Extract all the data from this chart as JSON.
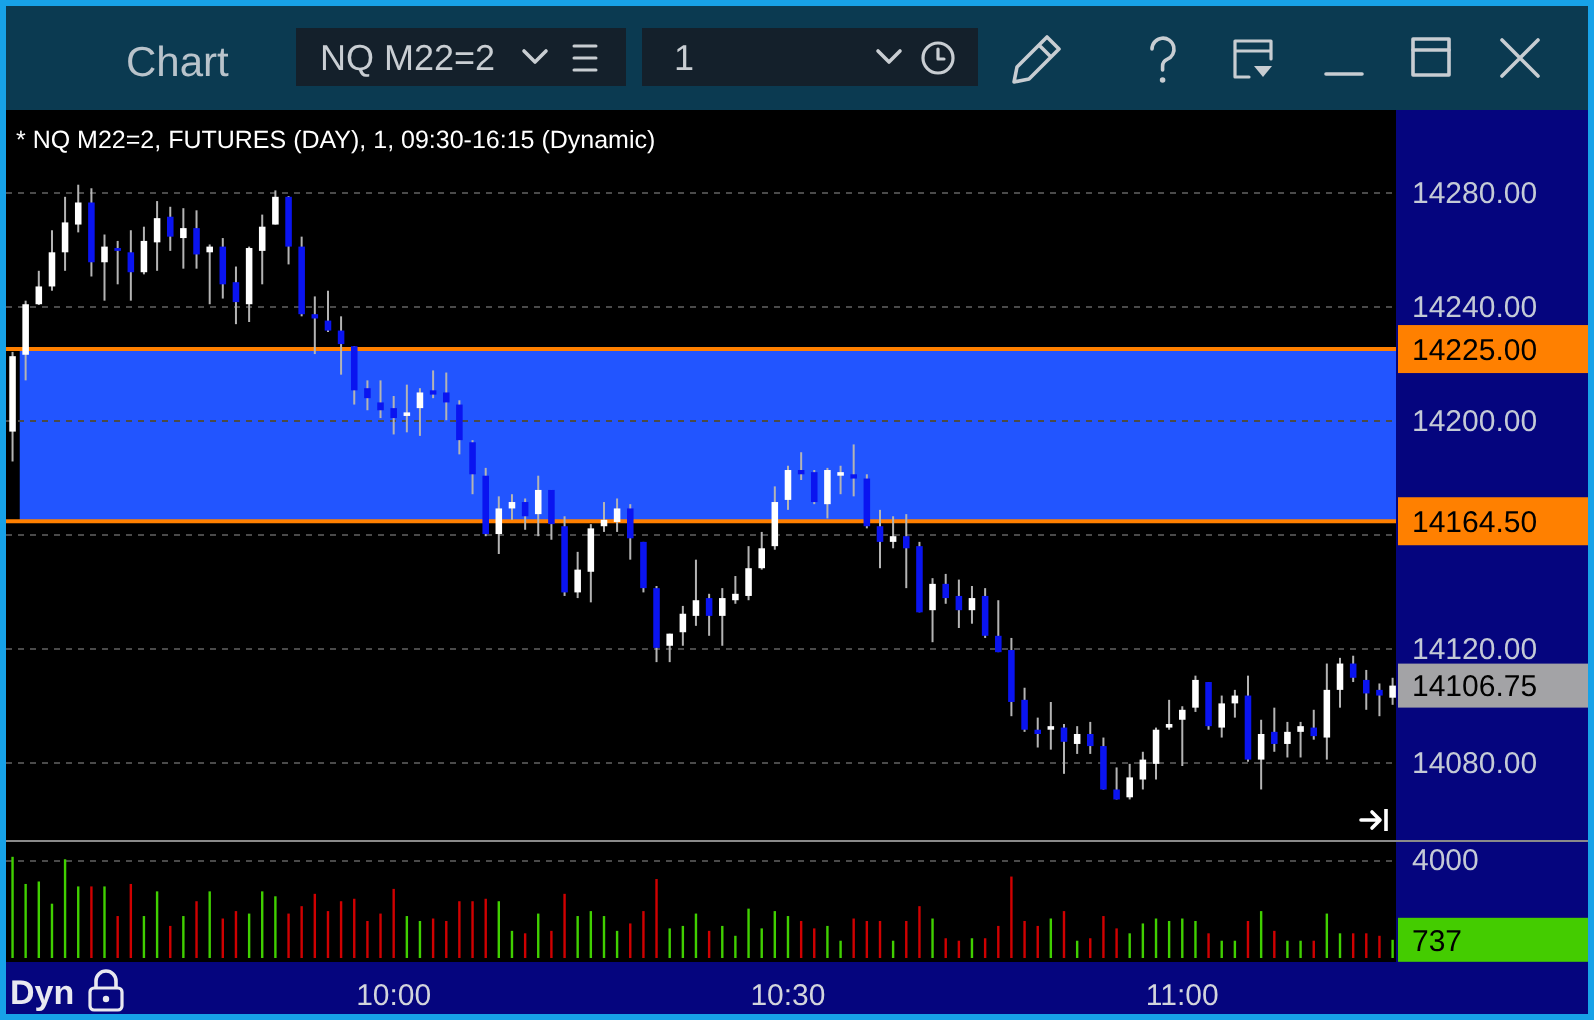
{
  "chart_data": [
    {
      "type": "candlestick",
      "title": "* NQ M22=2, FUTURES (DAY), 1, 09:30-16:15 (Dynamic)",
      "x": [
        9.5167,
        9.5333,
        9.55,
        9.5667,
        9.5833,
        9.6,
        9.6167,
        9.6333,
        9.65,
        9.6667,
        9.6833,
        9.7,
        9.7167,
        9.7333,
        9.75,
        9.7667,
        9.7833,
        9.8,
        9.8167,
        9.8333,
        9.85,
        9.8667,
        9.8833,
        9.9,
        9.9167,
        9.9333,
        9.95,
        9.9667,
        9.9833,
        10,
        10.0167,
        10.0333,
        10.05,
        10.0667,
        10.0833,
        10.1,
        10.1167,
        10.1333,
        10.15,
        10.1667,
        10.1833,
        10.2,
        10.2167,
        10.2333,
        10.25,
        10.2667,
        10.2833,
        10.3,
        10.3167,
        10.3333,
        10.35,
        10.3667,
        10.3833,
        10.4,
        10.4167,
        10.4333,
        10.45,
        10.4667,
        10.4833,
        10.5,
        10.5167,
        10.5333,
        10.55,
        10.5667,
        10.5833,
        10.6,
        10.6167,
        10.6333,
        10.65,
        10.6667,
        10.6833,
        10.7,
        10.7167,
        10.7333,
        10.75,
        10.7667,
        10.7833,
        10.8,
        10.8167,
        10.8333,
        10.85,
        10.8667,
        10.8833,
        10.9,
        10.9167,
        10.9333,
        10.95,
        10.9667,
        10.9833,
        11,
        11.0167,
        11.0333,
        11.05,
        11.0667,
        11.0833,
        11.1,
        11.1167,
        11.1333,
        11.15,
        11.1667,
        11.1833,
        11.2,
        11.2167,
        11.2333,
        11.25,
        11.2667
      ],
      "ohlc": [
        [
          14196,
          14224,
          14185.5,
          14222.5
        ],
        [
          14223,
          14242,
          14214,
          14240.75
        ],
        [
          14240.75,
          14252.5,
          14240.5,
          14247
        ],
        [
          14247,
          14266.75,
          14245.5,
          14259
        ],
        [
          14259,
          14278.5,
          14252.5,
          14269.5
        ],
        [
          14268.75,
          14282.75,
          14266,
          14276.5
        ],
        [
          14276.5,
          14281.5,
          14250.5,
          14255.5
        ],
        [
          14255.5,
          14265.25,
          14242,
          14261
        ],
        [
          14260.5,
          14263,
          14247.75,
          14259.5
        ],
        [
          14259,
          14266.75,
          14242,
          14252
        ],
        [
          14252,
          14268,
          14251.25,
          14263
        ],
        [
          14262.5,
          14277,
          14252.5,
          14271
        ],
        [
          14271.5,
          14275,
          14259.5,
          14264.5
        ],
        [
          14264,
          14274.5,
          14253.25,
          14267.5
        ],
        [
          14267.5,
          14273.75,
          14253.25,
          14258.25
        ],
        [
          14259,
          14261.75,
          14240.75,
          14261
        ],
        [
          14261,
          14264,
          14242.75,
          14247.75
        ],
        [
          14248.5,
          14254,
          14233.75,
          14241.5
        ],
        [
          14240.75,
          14261,
          14234.5,
          14260.5
        ],
        [
          14259.5,
          14272.25,
          14247.75,
          14268
        ],
        [
          14268.75,
          14280.75,
          14268.75,
          14278.5
        ],
        [
          14278.5,
          14278.75,
          14254.75,
          14261
        ],
        [
          14261,
          14264.5,
          14236.5,
          14237.25
        ],
        [
          14237.25,
          14243.5,
          14223.25,
          14235.75
        ],
        [
          14235,
          14245.5,
          14231,
          14231.5
        ],
        [
          14231.5,
          14236.5,
          14216,
          14226.75
        ],
        [
          14226,
          14226,
          14205.5,
          14210.5
        ],
        [
          14211.25,
          14214,
          14203.5,
          14207.75
        ],
        [
          14206.25,
          14214,
          14200.75,
          14203.5
        ],
        [
          14204.25,
          14208.5,
          14195,
          14200.75
        ],
        [
          14201.5,
          14212.5,
          14195.75,
          14202.75
        ],
        [
          14204.25,
          14211.25,
          14194.5,
          14209.75
        ],
        [
          14210.5,
          14217.5,
          14207.75,
          14209
        ],
        [
          14209.75,
          14216.75,
          14200,
          14206.25
        ],
        [
          14205.5,
          14207,
          14188,
          14193
        ],
        [
          14192.25,
          14193,
          14174,
          14181
        ],
        [
          14180.5,
          14183.25,
          14159.25,
          14160
        ],
        [
          14160,
          14173.25,
          14153,
          14169
        ],
        [
          14169,
          14174,
          14165,
          14171.25
        ],
        [
          14171.25,
          14172.5,
          14161.5,
          14166.25
        ],
        [
          14167,
          14180.5,
          14159.25,
          14175.5
        ],
        [
          14175.5,
          14175.5,
          14158,
          14163.5
        ],
        [
          14162.75,
          14166.25,
          14138.25,
          14139.5
        ],
        [
          14139.5,
          14153.75,
          14137.5,
          14147.5
        ],
        [
          14146.75,
          14163.5,
          14136,
          14162
        ],
        [
          14162.75,
          14171.25,
          14160.75,
          14165
        ],
        [
          14164.25,
          14172.5,
          14160.75,
          14169
        ],
        [
          14169,
          14170.5,
          14151,
          14158.5
        ],
        [
          14157.25,
          14157.25,
          14139.5,
          14141
        ],
        [
          14141,
          14141.75,
          14115,
          14120
        ],
        [
          14120.75,
          14125,
          14115,
          14125
        ],
        [
          14125.5,
          14134.75,
          14120.75,
          14132
        ],
        [
          14131.25,
          14151,
          14127.75,
          14136.75
        ],
        [
          14137.5,
          14139,
          14124.25,
          14131.25
        ],
        [
          14131.25,
          14141,
          14120.75,
          14137.5
        ],
        [
          14136.75,
          14145.25,
          14135.5,
          14139
        ],
        [
          14138.25,
          14155.75,
          14136.75,
          14148
        ],
        [
          14148,
          14160.75,
          14147.5,
          14155
        ],
        [
          14155.75,
          14176.75,
          14154.5,
          14171.25
        ],
        [
          14172,
          14184,
          14168.5,
          14182.5
        ],
        [
          14182.5,
          14188.75,
          14179,
          14181
        ],
        [
          14181.75,
          14182.5,
          14170.5,
          14171.25
        ],
        [
          14170.5,
          14183.25,
          14165.5,
          14182.5
        ],
        [
          14180.5,
          14184,
          14174,
          14181.75
        ],
        [
          14181,
          14191.5,
          14173.25,
          14179.5
        ],
        [
          14179.5,
          14181,
          14162,
          14162.75
        ],
        [
          14162.75,
          14168.5,
          14148,
          14157.25
        ],
        [
          14157.25,
          14166.25,
          14155,
          14159.25
        ],
        [
          14159.25,
          14167,
          14141,
          14155
        ],
        [
          14155.75,
          14157.25,
          14132.5,
          14132.5
        ],
        [
          14133.25,
          14144.5,
          14122,
          14142.5
        ],
        [
          14142.5,
          14146,
          14135.5,
          14137.5
        ],
        [
          14138.25,
          14144,
          14127,
          14133.25
        ],
        [
          14133.25,
          14141.75,
          14128.5,
          14137.5
        ],
        [
          14138.25,
          14141,
          14123.5,
          14124.25
        ],
        [
          14124.25,
          14136.75,
          14118.5,
          14118.5
        ],
        [
          14119.25,
          14123.5,
          14096,
          14101
        ],
        [
          14101.75,
          14106,
          14090.5,
          14091.25
        ],
        [
          14091.25,
          14095.5,
          14085,
          14089.75
        ],
        [
          14091.25,
          14101,
          14084.25,
          14092.5
        ],
        [
          14092,
          14093.25,
          14075.75,
          14087
        ],
        [
          14086.25,
          14092.5,
          14082.75,
          14089.75
        ],
        [
          14089.75,
          14094,
          14082.75,
          14085.5
        ],
        [
          14085.5,
          14088.5,
          14070.25,
          14070.25
        ],
        [
          14070.25,
          14078,
          14066.75,
          14066.75
        ],
        [
          14067.5,
          14079.25,
          14066.75,
          14074.5
        ],
        [
          14073.75,
          14083.5,
          14070.25,
          14080.75
        ],
        [
          14079.25,
          14092,
          14073.75,
          14091.25
        ],
        [
          14092,
          14101.75,
          14091.25,
          14093.25
        ],
        [
          14094.75,
          14099.5,
          14078.5,
          14098.25
        ],
        [
          14099,
          14110.25,
          14097.5,
          14108.75
        ],
        [
          14108,
          14108,
          14091.25,
          14092.5
        ],
        [
          14092,
          14103.25,
          14088.5,
          14100.5
        ],
        [
          14100.5,
          14105.25,
          14095.5,
          14103.25
        ],
        [
          14103.25,
          14110.25,
          14080,
          14080.75
        ],
        [
          14080.75,
          14094.75,
          14070.25,
          14089.75
        ],
        [
          14090.5,
          14099,
          14083.5,
          14086.25
        ],
        [
          14086.25,
          14094,
          14081.5,
          14090.5
        ],
        [
          14090.5,
          14094,
          14081.5,
          14092.5
        ],
        [
          14092,
          14098.25,
          14087.75,
          14089
        ],
        [
          14088.5,
          14114.5,
          14080.75,
          14105.25
        ],
        [
          14105.25,
          14116.5,
          14099,
          14114.5
        ],
        [
          14114.5,
          14117.25,
          14108,
          14109.5
        ],
        [
          14108.75,
          14112.25,
          14098.25,
          14104
        ],
        [
          14105.25,
          14107.5,
          14096,
          14103.25
        ],
        [
          14102.5,
          14109.5,
          14100,
          14106.75
        ]
      ],
      "colors": [
        "#ffffff",
        "#ffffff",
        "#ffffff",
        "#ffffff",
        "#ffffff",
        "#ffffff",
        "#0a14f0",
        "#ffffff",
        "#0a14f0",
        "#0a14f0",
        "#ffffff",
        "#ffffff",
        "#0a14f0",
        "#ffffff",
        "#0a14f0",
        "#ffffff",
        "#0a14f0",
        "#0a14f0",
        "#ffffff",
        "#ffffff",
        "#ffffff",
        "#0a14f0",
        "#0a14f0",
        "#0a14f0",
        "#0a14f0",
        "#0a14f0",
        "#0a14f0",
        "#0a14f0",
        "#0a14f0",
        "#0a14f0",
        "#ffffff",
        "#ffffff",
        "#0a14f0",
        "#0a14f0",
        "#0a14f0",
        "#0a14f0",
        "#0a14f0",
        "#ffffff",
        "#ffffff",
        "#0a14f0",
        "#ffffff",
        "#0a14f0",
        "#0a14f0",
        "#ffffff",
        "#ffffff",
        "#ffffff",
        "#ffffff",
        "#0a14f0",
        "#0a14f0",
        "#0a14f0",
        "#ffffff",
        "#ffffff",
        "#ffffff",
        "#0a14f0",
        "#ffffff",
        "#ffffff",
        "#ffffff",
        "#ffffff",
        "#ffffff",
        "#ffffff",
        "#0a14f0",
        "#0a14f0",
        "#ffffff",
        "#ffffff",
        "#0a14f0",
        "#0a14f0",
        "#0a14f0",
        "#ffffff",
        "#0a14f0",
        "#0a14f0",
        "#ffffff",
        "#0a14f0",
        "#0a14f0",
        "#ffffff",
        "#0a14f0",
        "#0a14f0",
        "#0a14f0",
        "#0a14f0",
        "#0a14f0",
        "#ffffff",
        "#0a14f0",
        "#ffffff",
        "#0a14f0",
        "#0a14f0",
        "#0a14f0",
        "#ffffff",
        "#ffffff",
        "#ffffff",
        "#ffffff",
        "#ffffff",
        "#ffffff",
        "#0a14f0",
        "#ffffff",
        "#ffffff",
        "#0a14f0",
        "#ffffff",
        "#0a14f0",
        "#ffffff",
        "#ffffff",
        "#0a14f0",
        "#ffffff",
        "#ffffff",
        "#0a14f0",
        "#0a14f0",
        "#0a14f0",
        "#ffffff"
      ],
      "xlim": [
        9.5084,
        11.271
      ],
      "ylim": [
        14052.5,
        14309
      ],
      "yticks": [
        {
          "value": 14080,
          "label": "14080.00"
        },
        {
          "value": 14120,
          "label": "14120.00"
        },
        {
          "value": 14160,
          "label": null
        },
        {
          "value": 14200,
          "label": "14200.00"
        },
        {
          "value": 14240,
          "label": "14240.00"
        },
        {
          "value": 14280,
          "label": "14280.00"
        }
      ],
      "grid": "y",
      "tick_labels": "y",
      "bands": [
        {
          "axis": "y",
          "from": 14164.5,
          "to": 14225,
          "color": "#2255ff"
        }
      ],
      "ref_lines": [
        {
          "axis": "y",
          "value": 14225,
          "label": "14225.00",
          "color": "#ff8000"
        },
        {
          "axis": "y",
          "value": 14164.5,
          "label": "14164.50",
          "color": "#ff8000"
        }
      ],
      "annotations": [
        "Chart",
        "NQ M22=2",
        "1",
        "14106.75"
      ]
    },
    {
      "type": "bar",
      "x": [
        9.5167,
        9.5333,
        9.55,
        9.5667,
        9.5833,
        9.6,
        9.6167,
        9.6333,
        9.65,
        9.6667,
        9.6833,
        9.7,
        9.7167,
        9.7333,
        9.75,
        9.7667,
        9.7833,
        9.8,
        9.8167,
        9.8333,
        9.85,
        9.8667,
        9.8833,
        9.9,
        9.9167,
        9.9333,
        9.95,
        9.9667,
        9.9833,
        10,
        10.0167,
        10.0333,
        10.05,
        10.0667,
        10.0833,
        10.1,
        10.1167,
        10.1333,
        10.15,
        10.1667,
        10.1833,
        10.2,
        10.2167,
        10.2333,
        10.25,
        10.2667,
        10.2833,
        10.3,
        10.3167,
        10.3333,
        10.35,
        10.3667,
        10.3833,
        10.4,
        10.4167,
        10.4333,
        10.45,
        10.4667,
        10.4833,
        10.5,
        10.5167,
        10.5333,
        10.55,
        10.5667,
        10.5833,
        10.6,
        10.6167,
        10.6333,
        10.65,
        10.6667,
        10.6833,
        10.7,
        10.7167,
        10.7333,
        10.75,
        10.7667,
        10.7833,
        10.8,
        10.8167,
        10.8333,
        10.85,
        10.8667,
        10.8833,
        10.9,
        10.9167,
        10.9333,
        10.95,
        10.9667,
        10.9833,
        11,
        11.0167,
        11.0333,
        11.05,
        11.0667,
        11.0833,
        11.1,
        11.1167,
        11.1333,
        11.15,
        11.1667,
        11.1833,
        11.2,
        11.2167,
        11.2333,
        11.25,
        11.2667
      ],
      "values": [
        4100,
        3000,
        3100,
        2200,
        4000,
        2900,
        2900,
        2900,
        1700,
        3000,
        1700,
        2700,
        1300,
        1700,
        2300,
        2700,
        1600,
        1900,
        1800,
        2700,
        2500,
        1800,
        2100,
        2600,
        1900,
        2300,
        2400,
        1500,
        1800,
        2800,
        1700,
        1500,
        1600,
        1500,
        2300,
        2300,
        2400,
        2300,
        1100,
        1000,
        1800,
        1100,
        2600,
        1700,
        1900,
        1700,
        1100,
        1400,
        1900,
        3200,
        1200,
        1300,
        1800,
        1100,
        1300,
        900,
        2000,
        1200,
        1900,
        1700,
        1500,
        1200,
        1300,
        700,
        1600,
        1500,
        1500,
        700,
        1500,
        2100,
        1600,
        800,
        700,
        800,
        800,
        1300,
        3300,
        1500,
        1300,
        1600,
        1900,
        700,
        800,
        1700,
        1200,
        1000,
        1400,
        1600,
        1500,
        1600,
        1500,
        1000,
        700,
        700,
        1500,
        1900,
        1100,
        700,
        700,
        700,
        1800,
        1000,
        1000,
        1000,
        900,
        737
      ],
      "colors": [
        "#40d000",
        "#40d000",
        "#40d000",
        "#40d000",
        "#40d000",
        "#40d000",
        "#d00000",
        "#40d000",
        "#d00000",
        "#d00000",
        "#40d000",
        "#40d000",
        "#d00000",
        "#40d000",
        "#d00000",
        "#40d000",
        "#d00000",
        "#d00000",
        "#40d000",
        "#40d000",
        "#40d000",
        "#d00000",
        "#d00000",
        "#d00000",
        "#d00000",
        "#d00000",
        "#d00000",
        "#d00000",
        "#d00000",
        "#d00000",
        "#40d000",
        "#40d000",
        "#d00000",
        "#d00000",
        "#d00000",
        "#d00000",
        "#d00000",
        "#40d000",
        "#40d000",
        "#d00000",
        "#40d000",
        "#d00000",
        "#d00000",
        "#40d000",
        "#40d000",
        "#40d000",
        "#40d000",
        "#d00000",
        "#d00000",
        "#d00000",
        "#40d000",
        "#40d000",
        "#40d000",
        "#d00000",
        "#40d000",
        "#40d000",
        "#40d000",
        "#40d000",
        "#40d000",
        "#40d000",
        "#d00000",
        "#d00000",
        "#40d000",
        "#40d000",
        "#d00000",
        "#d00000",
        "#d00000",
        "#40d000",
        "#d00000",
        "#d00000",
        "#40d000",
        "#d00000",
        "#d00000",
        "#40d000",
        "#d00000",
        "#d00000",
        "#d00000",
        "#d00000",
        "#d00000",
        "#40d000",
        "#d00000",
        "#40d000",
        "#d00000",
        "#d00000",
        "#d00000",
        "#40d000",
        "#40d000",
        "#40d000",
        "#40d000",
        "#40d000",
        "#40d000",
        "#d00000",
        "#40d000",
        "#40d000",
        "#d00000",
        "#40d000",
        "#d00000",
        "#40d000",
        "#40d000",
        "#d00000",
        "#40d000",
        "#40d000",
        "#d00000",
        "#d00000",
        "#d00000",
        "#40d000"
      ],
      "xlim": [
        9.5084,
        11.271
      ],
      "ylim": [
        0,
        4700
      ],
      "yticks": [
        4000
      ],
      "xticks": [
        {
          "value": 10,
          "label": "10:00"
        },
        {
          "value": 10.5,
          "label": "10:30"
        },
        {
          "value": 11,
          "label": "11:00"
        }
      ],
      "grid": "y",
      "annotations": [
        "Dyn",
        "737"
      ]
    }
  ]
}
